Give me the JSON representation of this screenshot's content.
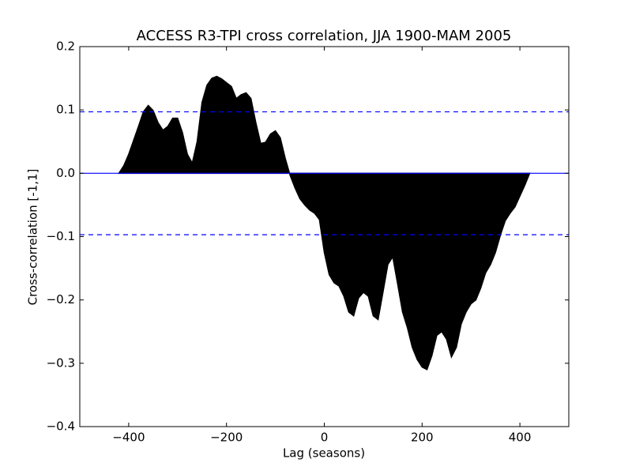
{
  "chart_data": {
    "type": "xcorr",
    "title": "ACCESS R3-TPI cross correlation, JJA 1900-MAM 2005",
    "x_label": "Lag (seasons)",
    "y_label": "Cross-correlation [-1,1]",
    "x": [
      -420,
      -410,
      -400,
      -390,
      -380,
      -370,
      -360,
      -350,
      -340,
      -330,
      -320,
      -310,
      -300,
      -290,
      -280,
      -270,
      -260,
      -250,
      -240,
      -230,
      -220,
      -210,
      -200,
      -190,
      -180,
      -170,
      -160,
      -150,
      -140,
      -130,
      -120,
      -110,
      -100,
      -90,
      -80,
      -70,
      -60,
      -50,
      -40,
      -30,
      -20,
      -10,
      0,
      10,
      20,
      30,
      40,
      50,
      60,
      70,
      80,
      90,
      100,
      110,
      120,
      130,
      140,
      150,
      160,
      170,
      180,
      190,
      200,
      210,
      220,
      230,
      240,
      250,
      260,
      270,
      280,
      290,
      300,
      310,
      320,
      330,
      340,
      350,
      360,
      370,
      380,
      390,
      400,
      410,
      420
    ],
    "values": [
      0,
      0.012,
      0.03,
      0.052,
      0.074,
      0.097,
      0.107,
      0.099,
      0.08,
      0.068,
      0.074,
      0.087,
      0.087,
      0.064,
      0.03,
      0.016,
      0.05,
      0.112,
      0.139,
      0.15,
      0.153,
      0.149,
      0.143,
      0.137,
      0.118,
      0.124,
      0.127,
      0.118,
      0.08,
      0.047,
      0.049,
      0.062,
      0.067,
      0.056,
      0.024,
      -0.003,
      -0.023,
      -0.04,
      -0.05,
      -0.058,
      -0.063,
      -0.073,
      -0.125,
      -0.16,
      -0.173,
      -0.178,
      -0.194,
      -0.219,
      -0.225,
      -0.197,
      -0.188,
      -0.194,
      -0.225,
      -0.231,
      -0.188,
      -0.144,
      -0.132,
      -0.175,
      -0.219,
      -0.244,
      -0.275,
      -0.294,
      -0.306,
      -0.31,
      -0.288,
      -0.256,
      -0.25,
      -0.262,
      -0.29,
      -0.275,
      -0.238,
      -0.219,
      -0.206,
      -0.2,
      -0.181,
      -0.157,
      -0.144,
      -0.125,
      -0.098,
      -0.075,
      -0.063,
      -0.053,
      -0.036,
      -0.019,
      0
    ],
    "color": "#000000",
    "conf_lines": [
      0.097,
      -0.097
    ],
    "line_color": "#0000ff",
    "xlim": [
      -500,
      500
    ],
    "ylim": [
      -0.4,
      0.2
    ],
    "xticks": [
      {
        "value": -400,
        "label": "−400"
      },
      {
        "value": -200,
        "label": "−200"
      },
      0,
      200,
      400
    ],
    "yticks": [
      {
        "value": -0.4,
        "label": "−0.4"
      },
      {
        "value": -0.3,
        "label": "−0.3"
      },
      {
        "value": -0.2,
        "label": "−0.2"
      },
      {
        "value": -0.1,
        "label": "−0.1"
      },
      {
        "value": 0,
        "label": "0.0"
      },
      0.1,
      0.2
    ]
  }
}
